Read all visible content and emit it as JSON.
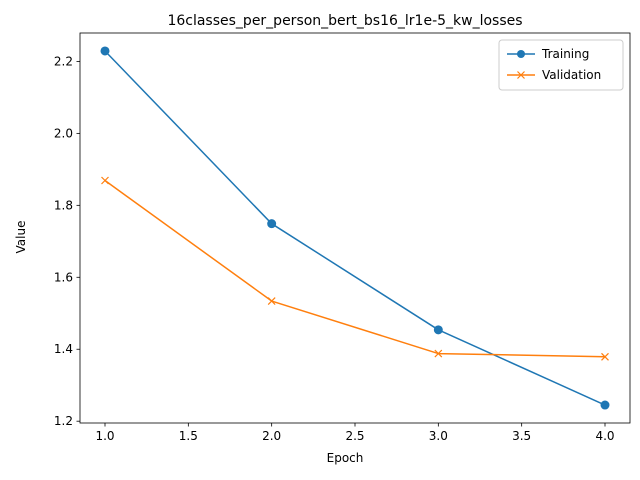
{
  "chart_data": {
    "type": "line",
    "title": "16classes_per_person_bert_bs16_lr1e-5_kw_losses",
    "xlabel": "Epoch",
    "ylabel": "Value",
    "x": [
      1.0,
      2.0,
      3.0,
      4.0
    ],
    "xlim": [
      0.85,
      4.15
    ],
    "ylim": [
      1.195,
      2.279
    ],
    "xticks": [
      1.0,
      1.5,
      2.0,
      2.5,
      3.0,
      3.5,
      4.0
    ],
    "xtick_labels": [
      "1.0",
      "1.5",
      "2.0",
      "2.5",
      "3.0",
      "3.5",
      "4.0"
    ],
    "yticks": [
      1.2,
      1.4,
      1.6,
      1.8,
      2.0,
      2.2
    ],
    "ytick_labels": [
      "1.2",
      "1.4",
      "1.6",
      "1.8",
      "2.0",
      "2.2"
    ],
    "grid": false,
    "legend_position": "top-right",
    "series": [
      {
        "name": "Training",
        "values": [
          2.229,
          1.749,
          1.454,
          1.245
        ],
        "color": "#1f77b4",
        "marker": "circle"
      },
      {
        "name": "Validation",
        "values": [
          1.869,
          1.534,
          1.388,
          1.379
        ],
        "color": "#ff7f0e",
        "marker": "x"
      }
    ]
  }
}
